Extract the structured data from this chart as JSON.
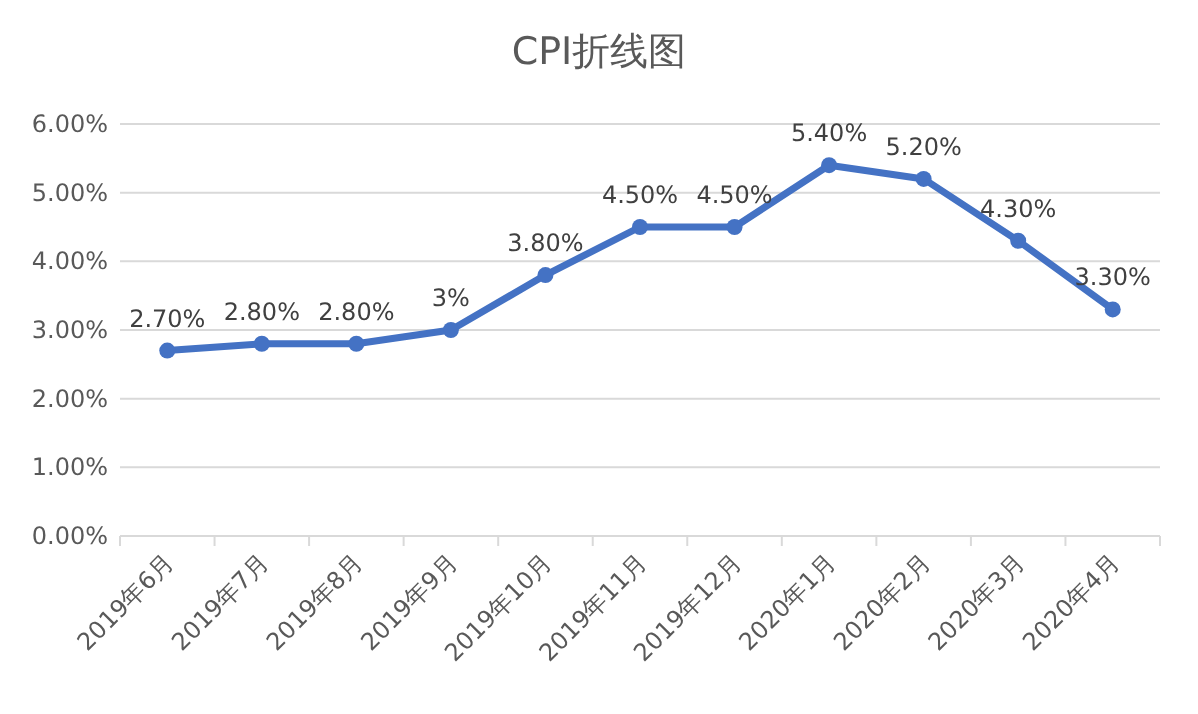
{
  "chart_data": {
    "type": "line",
    "title": "CPI折线图",
    "categories": [
      "2019年6月",
      "2019年7月",
      "2019年8月",
      "2019年9月",
      "2019年10月",
      "2019年11月",
      "2019年12月",
      "2020年1月",
      "2020年2月",
      "2020年3月",
      "2020年4月"
    ],
    "values": [
      2.7,
      2.8,
      2.8,
      3,
      3.8,
      4.5,
      4.5,
      5.4,
      5.2,
      4.3,
      3.3
    ],
    "value_labels": [
      "2.70%",
      "2.80%",
      "2.80%",
      "3%",
      "3.80%",
      "4.50%",
      "4.50%",
      "5.40%",
      "5.20%",
      "4.30%",
      "3.30%"
    ],
    "color": "#4472c4",
    "marker": "circle",
    "grid": "y",
    "ylim": [
      0,
      6
    ],
    "yticks": [
      {
        "value": 0,
        "label": "0.00%"
      },
      {
        "value": 1,
        "label": "1.00%"
      },
      {
        "value": 2,
        "label": "2.00%"
      },
      {
        "value": 3,
        "label": "3.00%"
      },
      {
        "value": 4,
        "label": "4.00%"
      },
      {
        "value": 5,
        "label": "5.00%"
      },
      {
        "value": 6,
        "label": "6.00%"
      }
    ]
  }
}
